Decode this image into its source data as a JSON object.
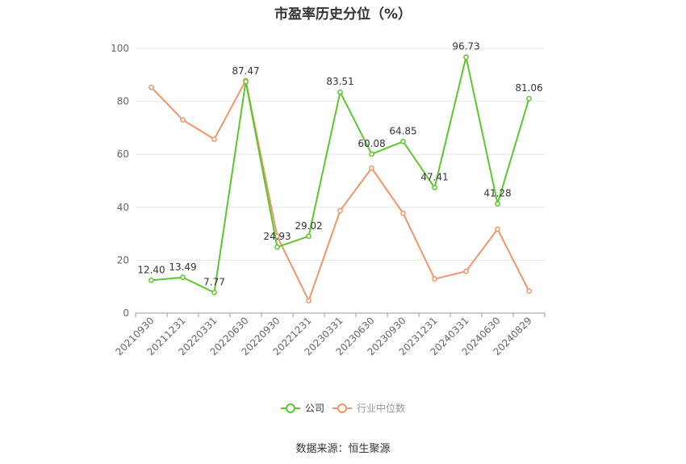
{
  "chart_data": {
    "type": "line",
    "title": "市盈率历史分位（%）",
    "source": "数据来源：恒生聚源",
    "categories": [
      "20210930",
      "20211231",
      "20220331",
      "20220630",
      "20220930",
      "20221231",
      "20230331",
      "20230630",
      "20230930",
      "20231231",
      "20240331",
      "20240630",
      "20240829"
    ],
    "ylim": [
      0,
      100
    ],
    "yticks": [
      0,
      20,
      40,
      60,
      80,
      100
    ],
    "grid": true,
    "legend_position": "bottom",
    "series": [
      {
        "name": "公司",
        "color": "#5cc72c",
        "values": [
          12.4,
          13.49,
          7.77,
          87.47,
          24.93,
          29.02,
          83.51,
          60.08,
          64.85,
          47.41,
          96.73,
          41.28,
          81.06
        ],
        "labels": [
          "12.40",
          "13.49",
          "7.77",
          "87.47",
          "24.93",
          "29.02",
          "83.51",
          "60.08",
          "64.85",
          "47.41",
          "96.73",
          "41.28",
          "81.06"
        ]
      },
      {
        "name": "行业中位数",
        "color": "#f0956a",
        "values": [
          85.3,
          73.0,
          65.7,
          87.9,
          29.0,
          4.7,
          38.7,
          54.8,
          37.7,
          12.9,
          15.8,
          31.7,
          8.3
        ]
      }
    ]
  }
}
